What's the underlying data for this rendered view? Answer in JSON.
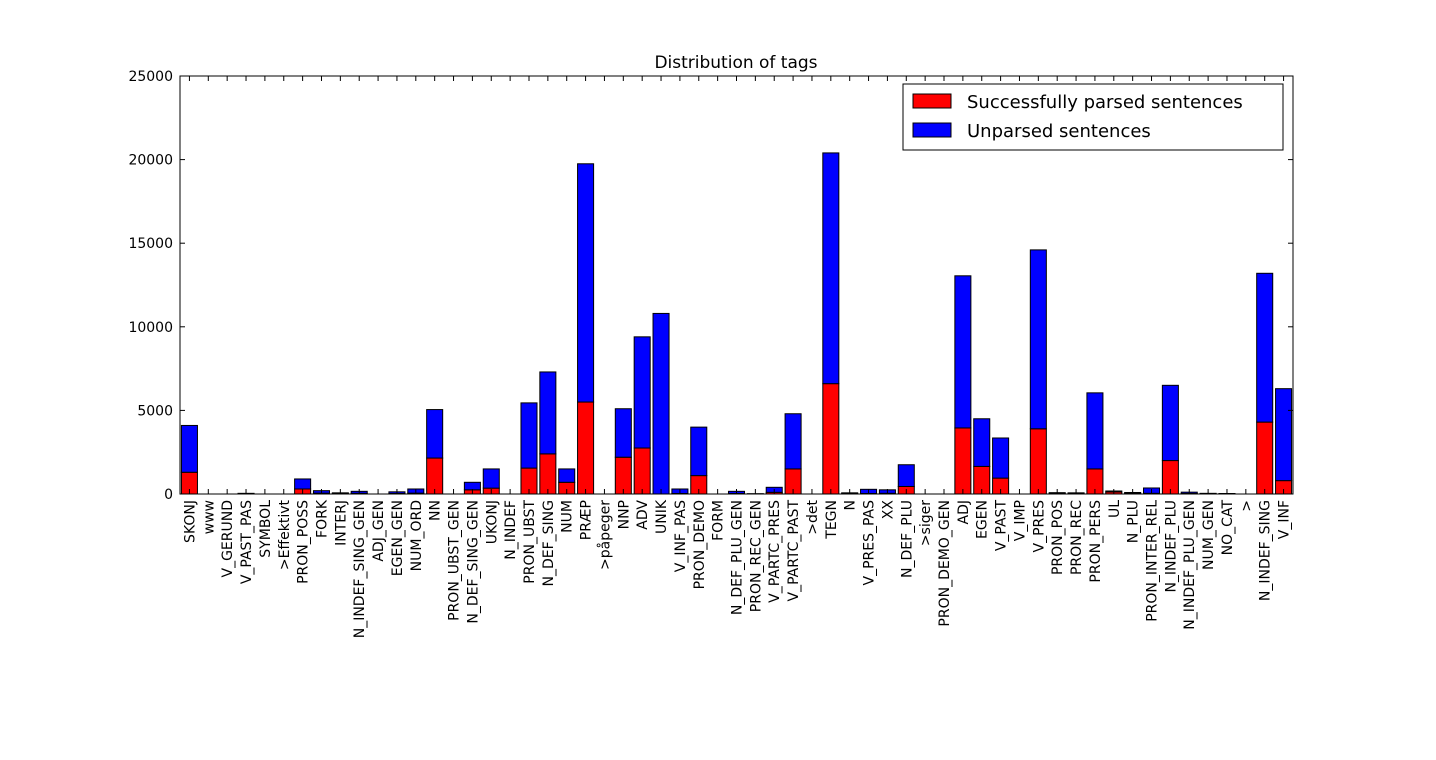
{
  "chart_data": {
    "type": "bar",
    "stacked": true,
    "title": "Distribution of tags",
    "xlabel": "",
    "ylabel": "",
    "ylim": [
      0,
      25000
    ],
    "yticks": [
      0,
      5000,
      10000,
      15000,
      20000,
      25000
    ],
    "grid": false,
    "legend_position": "top-right",
    "categories": [
      "SKONJ",
      "www",
      "V_GERUND",
      "V_PAST_PAS",
      "SYMBOL",
      ">Effektivt",
      "PRON_POSS",
      "FORK",
      "INTERJ",
      "N_INDEF_SING_GEN",
      "ADJ_GEN",
      "EGEN_GEN",
      "NUM_ORD",
      "NN",
      "PRON_UBST_GEN",
      "N_DEF_SING_GEN",
      "UKONJ",
      "N_INDEF",
      "PRON_UBST",
      "N_DEF_SING",
      "NUM",
      "PRÆP",
      ">påpeger",
      "NNP",
      "ADV",
      "UNIK",
      "V_INF_PAS",
      "PRON_DEMO",
      "FORM",
      "N_DEF_PLU_GEN",
      "PRON_REC_GEN",
      "V_PARTC_PRES",
      "V_PARTC_PAST",
      ">det",
      "TEGN",
      "N",
      "V_PRES_PAS",
      "XX",
      "N_DEF_PLU",
      ">siger",
      "PRON_DEMO_GEN",
      "ADJ",
      "EGEN",
      "V_PAST",
      "V_IMP",
      "V_PRES",
      "PRON_POS",
      "PRON_REC",
      "PRON_PERS",
      "UL",
      "N_PLU",
      "PRON_INTER_REL",
      "N_INDEF_PLU",
      "N_INDEF_PLU_GEN",
      "NUM_GEN",
      "NO_CAT",
      ">",
      "N_INDEF_SING",
      "V_INF"
    ],
    "series": [
      {
        "name": "Successfully parsed sentences",
        "color": "#ff0000",
        "values": [
          1300,
          0,
          0,
          20,
          0,
          0,
          300,
          50,
          20,
          40,
          0,
          30,
          50,
          2150,
          0,
          250,
          350,
          0,
          1550,
          2400,
          700,
          5500,
          0,
          2200,
          2750,
          0,
          30,
          1100,
          0,
          30,
          0,
          100,
          1500,
          0,
          6600,
          20,
          30,
          40,
          450,
          0,
          0,
          3950,
          1650,
          950,
          0,
          3900,
          40,
          40,
          1500,
          120,
          30,
          40,
          2000,
          30,
          20,
          10,
          0,
          4300,
          800
        ]
      },
      {
        "name": "Unparsed sentences",
        "color": "#0000ff",
        "values": [
          2800,
          0,
          0,
          20,
          0,
          0,
          600,
          150,
          50,
          120,
          0,
          100,
          250,
          2900,
          0,
          450,
          1150,
          0,
          3900,
          4900,
          800,
          14250,
          0,
          2900,
          6650,
          10800,
          270,
          2900,
          0,
          130,
          20,
          300,
          3300,
          0,
          13800,
          50,
          250,
          210,
          1300,
          0,
          0,
          9100,
          2850,
          2400,
          0,
          10700,
          40,
          30,
          4550,
          60,
          60,
          320,
          4500,
          80,
          20,
          20,
          0,
          8900,
          5500
        ]
      }
    ]
  }
}
